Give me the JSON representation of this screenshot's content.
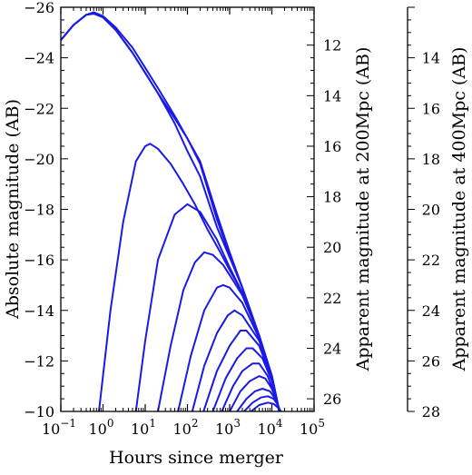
{
  "chart_data": {
    "type": "line",
    "title": "",
    "xlabel": "Hours since merger",
    "ylabel_left": "Absolute magnitude (AB)",
    "ylabel_right1": "Apparent magnitude at 200Mpc (AB)",
    "ylabel_right2": "Apparent magnitude at 400Mpc (AB)",
    "x_scale": "log",
    "xlim": [
      0.1,
      100000
    ],
    "ylim_absolute": [
      -10,
      -26
    ],
    "x_ticks": [
      {
        "value": 0.1,
        "base": "10",
        "exp": "−1"
      },
      {
        "value": 1,
        "base": "10",
        "exp": "0"
      },
      {
        "value": 10,
        "base": "10",
        "exp": "1"
      },
      {
        "value": 100,
        "base": "10",
        "exp": "2"
      },
      {
        "value": 1000,
        "base": "10",
        "exp": "3"
      },
      {
        "value": 10000,
        "base": "10",
        "exp": "4"
      },
      {
        "value": 100000,
        "base": "10",
        "exp": "5"
      }
    ],
    "y_ticks_left": [
      {
        "value": -26,
        "label": "−26"
      },
      {
        "value": -24,
        "label": "−24"
      },
      {
        "value": -22,
        "label": "−22"
      },
      {
        "value": -20,
        "label": "−20"
      },
      {
        "value": -18,
        "label": "−18"
      },
      {
        "value": -16,
        "label": "−16"
      },
      {
        "value": -14,
        "label": "−14"
      },
      {
        "value": -12,
        "label": "−12"
      },
      {
        "value": -10,
        "label": "−10"
      }
    ],
    "y_ticks_right1": [
      {
        "value": 12,
        "label": "12"
      },
      {
        "value": 14,
        "label": "14"
      },
      {
        "value": 16,
        "label": "16"
      },
      {
        "value": 18,
        "label": "18"
      },
      {
        "value": 20,
        "label": "20"
      },
      {
        "value": 22,
        "label": "22"
      },
      {
        "value": 24,
        "label": "24"
      },
      {
        "value": 26,
        "label": "26"
      }
    ],
    "y_ticks_right2": [
      {
        "value": 14,
        "label": "14"
      },
      {
        "value": 16,
        "label": "16"
      },
      {
        "value": 18,
        "label": "18"
      },
      {
        "value": 20,
        "label": "20"
      },
      {
        "value": 22,
        "label": "22"
      },
      {
        "value": 24,
        "label": "24"
      },
      {
        "value": 26,
        "label": "26"
      },
      {
        "value": 28,
        "label": "28"
      }
    ],
    "right1_offset": 36.5,
    "right2_offset": 38.0,
    "line_color": "#1a1ae6",
    "grid": false,
    "series": [
      {
        "x": [
          0.1,
          0.2,
          0.4,
          0.6,
          1.0,
          2,
          5,
          10,
          20,
          50,
          100,
          200,
          500,
          1000,
          2000,
          5000,
          10000,
          15000
        ],
        "y": [
          -24.7,
          -25.3,
          -25.7,
          -25.75,
          -25.6,
          -25.1,
          -24.2,
          -23.4,
          -22.6,
          -21.6,
          -20.8,
          -19.8,
          -17.6,
          -16.2,
          -14.9,
          -13.0,
          -11.4,
          -10.0
        ]
      },
      {
        "x": [
          0.1,
          0.2,
          0.4,
          0.6,
          1.0,
          2,
          5,
          10,
          20,
          50,
          100,
          200,
          500,
          1000,
          2000,
          5000,
          10000,
          15000
        ],
        "y": [
          -24.7,
          -25.3,
          -25.7,
          -25.75,
          -25.6,
          -25.1,
          -24.2,
          -23.4,
          -22.6,
          -21.4,
          -20.3,
          -19.3,
          -17.3,
          -16.1,
          -14.9,
          -13.0,
          -11.4,
          -10.0
        ]
      },
      {
        "x": [
          0.1,
          0.2,
          0.4,
          0.6,
          1.0,
          2,
          5,
          10,
          20,
          50,
          100,
          200,
          500,
          1000,
          2000,
          5000,
          10000,
          15000
        ],
        "y": [
          -24.7,
          -25.3,
          -25.7,
          -25.8,
          -25.65,
          -25.2,
          -24.4,
          -23.6,
          -22.8,
          -21.7,
          -20.8,
          -19.9,
          -17.8,
          -16.3,
          -14.9,
          -13.0,
          -11.4,
          -10.0
        ]
      },
      {
        "x": [
          0.8,
          1.5,
          3,
          6,
          10,
          13,
          20,
          40,
          80,
          150,
          300,
          600,
          1000,
          2000,
          5000,
          10000,
          15000
        ],
        "y": [
          -10.0,
          -14.0,
          -17.5,
          -19.9,
          -20.5,
          -20.6,
          -20.4,
          -19.8,
          -19.0,
          -18.2,
          -17.2,
          -16.3,
          -15.6,
          -14.7,
          -13.0,
          -11.4,
          -10.0
        ]
      },
      {
        "x": [
          6,
          10,
          20,
          50,
          100,
          200,
          500,
          1000,
          2000,
          5000,
          10000,
          15000
        ],
        "y": [
          -10.0,
          -12.8,
          -16.0,
          -17.8,
          -18.2,
          -17.9,
          -16.8,
          -15.7,
          -14.7,
          -13.0,
          -11.4,
          -10.0
        ]
      },
      {
        "x": [
          20,
          40,
          80,
          150,
          250,
          400,
          700,
          1000,
          2000,
          5000,
          10000,
          15000
        ],
        "y": [
          -10.0,
          -12.6,
          -14.8,
          -15.9,
          -16.3,
          -16.2,
          -15.8,
          -15.4,
          -14.6,
          -13.0,
          -11.4,
          -10.0
        ]
      },
      {
        "x": [
          60,
          120,
          250,
          500,
          700,
          1000,
          2000,
          5000,
          10000,
          15000
        ],
        "y": [
          -10.0,
          -12.2,
          -14.0,
          -14.9,
          -15.0,
          -14.9,
          -14.3,
          -12.9,
          -11.4,
          -10.0
        ]
      },
      {
        "x": [
          130,
          250,
          500,
          900,
          1300,
          2000,
          5000,
          10000,
          15000
        ],
        "y": [
          -10.0,
          -11.8,
          -13.1,
          -13.8,
          -14.0,
          -13.8,
          -12.8,
          -11.4,
          -10.0
        ]
      },
      {
        "x": [
          240,
          500,
          1000,
          1800,
          2500,
          5000,
          10000,
          15000
        ],
        "y": [
          -10.0,
          -11.6,
          -12.6,
          -13.2,
          -13.2,
          -12.6,
          -11.3,
          -10.0
        ]
      },
      {
        "x": [
          400,
          800,
          1500,
          2500,
          3500,
          6000,
          10000,
          15000
        ],
        "y": [
          -10.0,
          -11.3,
          -12.1,
          -12.5,
          -12.5,
          -12.1,
          -11.2,
          -10.0
        ]
      },
      {
        "x": [
          650,
          1200,
          2000,
          3500,
          5000,
          8000,
          12000,
          15000
        ],
        "y": [
          -10.0,
          -11.0,
          -11.6,
          -11.9,
          -11.9,
          -11.4,
          -10.6,
          -10.0
        ]
      },
      {
        "x": [
          1000,
          1800,
          3000,
          5000,
          7000,
          10000,
          13000,
          15500
        ],
        "y": [
          -10.0,
          -10.8,
          -11.2,
          -11.4,
          -11.3,
          -10.9,
          -10.4,
          -10.0
        ]
      },
      {
        "x": [
          1500,
          2500,
          4000,
          6000,
          9000,
          12000,
          15500
        ],
        "y": [
          -10.0,
          -10.5,
          -10.8,
          -10.9,
          -10.8,
          -10.5,
          -10.0
        ]
      },
      {
        "x": [
          2200,
          3500,
          5500,
          8000,
          11000,
          14000,
          16000
        ],
        "y": [
          -10.0,
          -10.35,
          -10.55,
          -10.6,
          -10.5,
          -10.25,
          -10.0
        ]
      },
      {
        "x": [
          3200,
          5000,
          8000,
          11000,
          14000,
          16500
        ],
        "y": [
          -10.0,
          -10.25,
          -10.35,
          -10.3,
          -10.15,
          -10.0
        ]
      }
    ]
  }
}
